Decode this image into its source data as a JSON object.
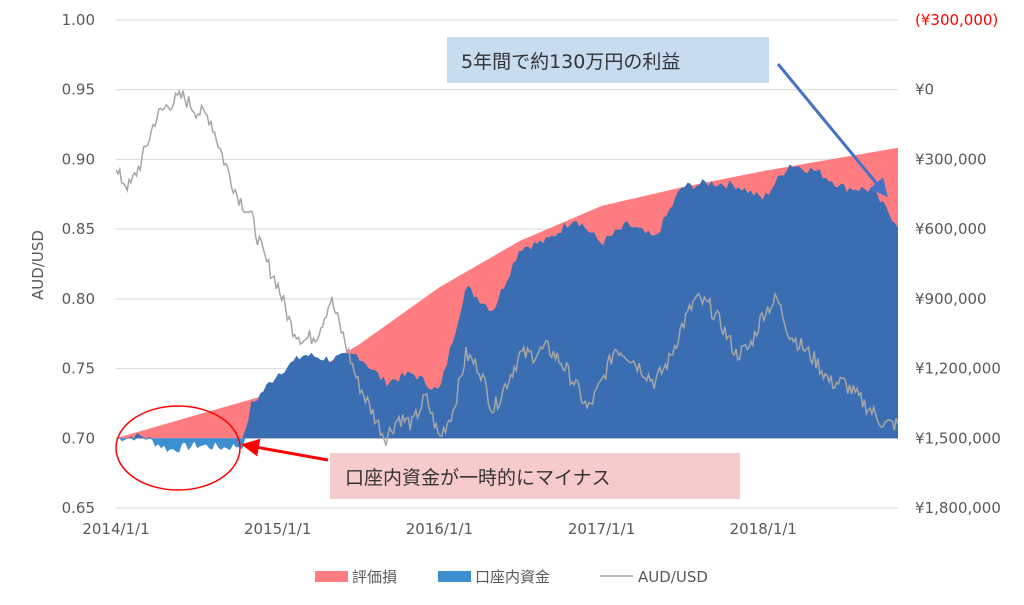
{
  "chart_data": {
    "type": "area",
    "x_ticks": [
      "2014/1/1",
      "2015/1/1",
      "2016/1/1",
      "2017/1/1",
      "2018/1/1"
    ],
    "ylabel": "AUD/USD",
    "y_ticks": [
      "1.00",
      "0.95",
      "0.90",
      "0.85",
      "0.80",
      "0.75",
      "0.70",
      "0.65"
    ],
    "ylim": [
      0.65,
      1.0
    ],
    "y2_ticks": [
      "¥1,800,000",
      "¥1,500,000",
      "¥1,200,000",
      "¥900,000",
      "¥600,000",
      "¥300,000",
      "¥0",
      "(¥300,000)"
    ],
    "y2lim": [
      -300000,
      1800000
    ],
    "grid": true,
    "legend_position": "bottom",
    "colors": {
      "valuation_loss": "#ff7c80",
      "account_funds": "#3a6db1",
      "account_funds_negative": "#3e8fd0",
      "aud_usd": "#a6a6a6",
      "arrow_red": "#ff0000",
      "arrow_blue": "#4472c4",
      "negative_label": "#ff0000"
    },
    "series": [
      {
        "name": "評価損",
        "kind": "area",
        "axis": "right",
        "x": [
          "2014/1/1",
          "2014/7/1",
          "2015/1/1",
          "2015/7/1",
          "2016/1/1",
          "2016/7/1",
          "2017/1/1",
          "2017/7/1",
          "2018/1/1",
          "2018/7/1",
          "2018/11/1"
        ],
        "values": [
          0,
          100000,
          200000,
          400000,
          650000,
          850000,
          1000000,
          1080000,
          1150000,
          1210000,
          1250000
        ]
      },
      {
        "name": "口座内資金",
        "kind": "area",
        "axis": "right",
        "x": [
          "2014/1/1",
          "2014/3/1",
          "2014/5/1",
          "2014/7/1",
          "2014/9/1",
          "2014/10/15",
          "2014/11/1",
          "2015/1/1",
          "2015/3/1",
          "2015/5/1",
          "2015/7/1",
          "2015/9/1",
          "2015/11/1",
          "2016/1/1",
          "2016/3/1",
          "2016/5/1",
          "2016/7/1",
          "2016/9/1",
          "2016/11/1",
          "2017/1/1",
          "2017/3/1",
          "2017/5/1",
          "2017/7/1",
          "2017/9/1",
          "2017/11/1",
          "2018/1/1",
          "2018/3/1",
          "2018/5/1",
          "2018/7/1",
          "2018/9/1",
          "2018/11/1"
        ],
        "values": [
          0,
          10000,
          -50000,
          -30000,
          -40000,
          -30000,
          140000,
          280000,
          360000,
          340000,
          360000,
          240000,
          280000,
          200000,
          650000,
          550000,
          820000,
          850000,
          950000,
          840000,
          920000,
          860000,
          1080000,
          1100000,
          1090000,
          1030000,
          1180000,
          1150000,
          1080000,
          1070000,
          920000
        ]
      },
      {
        "name": "AUD/USD",
        "kind": "line",
        "axis": "left",
        "x": [
          "2014/1/1",
          "2014/2/1",
          "2014/3/1",
          "2014/4/1",
          "2014/5/1",
          "2014/6/1",
          "2014/7/1",
          "2014/8/1",
          "2014/9/1",
          "2014/10/1",
          "2014/11/1",
          "2014/12/1",
          "2015/1/1",
          "2015/2/1",
          "2015/3/1",
          "2015/4/1",
          "2015/5/1",
          "2015/6/1",
          "2015/7/1",
          "2015/8/1",
          "2015/9/1",
          "2015/10/1",
          "2015/11/1",
          "2015/12/1",
          "2016/1/1",
          "2016/2/1",
          "2016/3/1",
          "2016/4/1",
          "2016/5/1",
          "2016/6/1",
          "2016/7/1",
          "2016/8/1",
          "2016/9/1",
          "2016/10/1",
          "2016/11/1",
          "2016/12/1",
          "2017/1/1",
          "2017/2/1",
          "2017/3/1",
          "2017/4/1",
          "2017/5/1",
          "2017/6/1",
          "2017/7/1",
          "2017/8/1",
          "2017/9/1",
          "2017/10/1",
          "2017/11/1",
          "2017/12/1",
          "2018/1/1",
          "2018/2/1",
          "2018/3/1",
          "2018/4/1",
          "2018/5/1",
          "2018/6/1",
          "2018/7/1",
          "2018/8/1",
          "2018/9/1",
          "2018/10/1",
          "2018/11/1"
        ],
        "values": [
          0.89,
          0.88,
          0.9,
          0.93,
          0.94,
          0.945,
          0.935,
          0.93,
          0.9,
          0.875,
          0.86,
          0.83,
          0.81,
          0.78,
          0.77,
          0.775,
          0.8,
          0.77,
          0.74,
          0.72,
          0.7,
          0.715,
          0.71,
          0.73,
          0.7,
          0.72,
          0.76,
          0.75,
          0.72,
          0.74,
          0.76,
          0.76,
          0.765,
          0.755,
          0.74,
          0.72,
          0.74,
          0.765,
          0.76,
          0.75,
          0.74,
          0.755,
          0.78,
          0.8,
          0.795,
          0.78,
          0.76,
          0.765,
          0.79,
          0.8,
          0.775,
          0.765,
          0.755,
          0.74,
          0.74,
          0.73,
          0.72,
          0.71,
          0.71
        ]
      }
    ],
    "annotations": [
      {
        "text": "5年間で約130万円の利益"
      },
      {
        "text": "口座内資金が一時的にマイナス"
      }
    ]
  }
}
